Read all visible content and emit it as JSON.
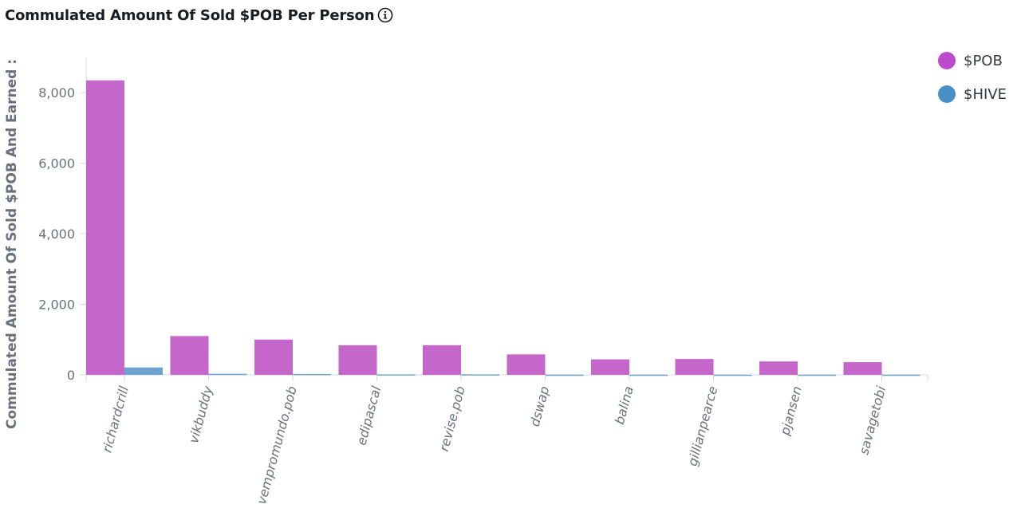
{
  "header": {
    "title": "Commulated Amount Of Sold $POB Per Person",
    "info_icon": "info-icon"
  },
  "colors": {
    "pob": "#c466ca",
    "hive": "#6ba3d0",
    "legend_pob": "#b94bcc",
    "legend_hive": "#4a90c8",
    "axis": "#d3dae6"
  },
  "chart_data": {
    "type": "bar",
    "title": "Commulated Amount Of Sold $POB Per Person",
    "ylabel": "Commulated Amount Of Sold $POB And Earned :",
    "xlabel": "",
    "ylim": [
      0,
      9000
    ],
    "yticks": [
      "0",
      "2,000",
      "4,000",
      "6,000",
      "8,000"
    ],
    "categories": [
      "richardcrill",
      "vikbuddy",
      "vempromundo.pob",
      "edipascal",
      "revise.pob",
      "dswap",
      "balina",
      "gillianpearce",
      "pjansen",
      "savagetobi"
    ],
    "series": [
      {
        "name": "$POB",
        "values": [
          8350,
          1100,
          1000,
          840,
          840,
          580,
          440,
          450,
          380,
          360
        ]
      },
      {
        "name": "$HIVE",
        "values": [
          210,
          30,
          25,
          15,
          15,
          5,
          5,
          5,
          5,
          5
        ]
      }
    ],
    "legend_position": "top-right",
    "grid": false
  }
}
